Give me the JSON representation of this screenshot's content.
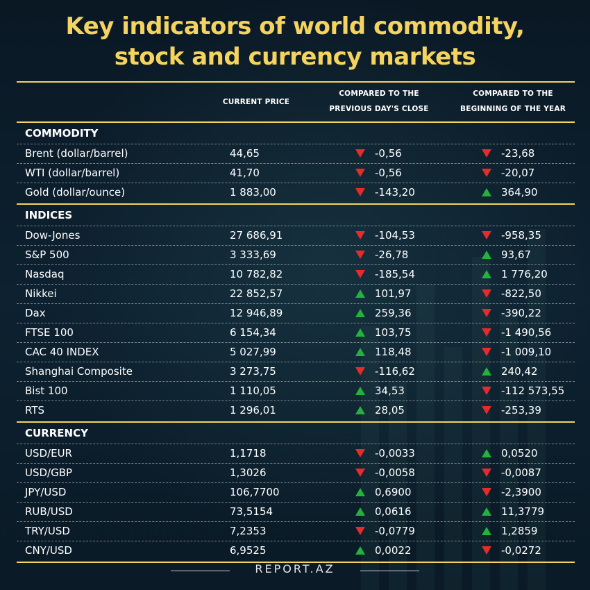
{
  "title": {
    "line1": "Key indicators of world commodity,",
    "line2": "stock and currency markets"
  },
  "columns": {
    "current_price": "CURRENT PRICE",
    "prev_close_line1": "COMPARED TO THE",
    "prev_close_line2": "PREVIOUS DAY'S CLOSE",
    "year_start_line1": "COMPARED TO THE",
    "year_start_line2": "BEGINNING OF THE YEAR"
  },
  "colors": {
    "accent": "#f4d35e",
    "up": "#21b33c",
    "down": "#e52b2b"
  },
  "sections": [
    {
      "title": "COMMODITY",
      "rows": [
        {
          "name": "Brent (dollar/barrel)",
          "price": "44,65",
          "day": "-0,56",
          "day_dir": "down",
          "year": "-23,68",
          "year_dir": "down"
        },
        {
          "name": "WTI (dollar/barrel)",
          "price": "41,70",
          "day": "-0,56",
          "day_dir": "down",
          "year": "-20,07",
          "year_dir": "down"
        },
        {
          "name": "Gold (dollar/ounce)",
          "price": "1 883,00",
          "day": "-143,20",
          "day_dir": "down",
          "year": "364,90",
          "year_dir": "up"
        }
      ]
    },
    {
      "title": "INDICES",
      "rows": [
        {
          "name": "Dow-Jones",
          "price": "27 686,91",
          "day": "-104,53",
          "day_dir": "down",
          "year": "-958,35",
          "year_dir": "down"
        },
        {
          "name": "S&P 500",
          "price": "3 333,69",
          "day": "-26,78",
          "day_dir": "down",
          "year": "93,67",
          "year_dir": "up"
        },
        {
          "name": "Nasdaq",
          "price": "10 782,82",
          "day": "-185,54",
          "day_dir": "down",
          "year": "1 776,20",
          "year_dir": "up"
        },
        {
          "name": "Nikkei",
          "price": "22 852,57",
          "day": "101,97",
          "day_dir": "up",
          "year": "-822,50",
          "year_dir": "down"
        },
        {
          "name": "Dax",
          "price": "12 946,89",
          "day": "259,36",
          "day_dir": "up",
          "year": "-390,22",
          "year_dir": "down"
        },
        {
          "name": "FTSE 100",
          "price": "6 154,34",
          "day": "103,75",
          "day_dir": "up",
          "year": "-1 490,56",
          "year_dir": "down"
        },
        {
          "name": "CAC 40 INDEX",
          "price": "5 027,99",
          "day": "118,48",
          "day_dir": "up",
          "year": "-1 009,10",
          "year_dir": "down"
        },
        {
          "name": "Shanghai Composite",
          "price": "3 273,75",
          "day": "-116,62",
          "day_dir": "down",
          "year": "240,42",
          "year_dir": "up"
        },
        {
          "name": "Bist 100",
          "price": "1 110,05",
          "day": "34,53",
          "day_dir": "up",
          "year": "-112 573,55",
          "year_dir": "down"
        },
        {
          "name": "RTS",
          "price": "1 296,01",
          "day": "28,05",
          "day_dir": "up",
          "year": "-253,39",
          "year_dir": "down"
        }
      ]
    },
    {
      "title": "CURRENCY",
      "rows": [
        {
          "name": "USD/EUR",
          "price": "1,1718",
          "day": "-0,0033",
          "day_dir": "down",
          "year": "0,0520",
          "year_dir": "up"
        },
        {
          "name": "USD/GBP",
          "price": "1,3026",
          "day": "-0,0058",
          "day_dir": "down",
          "year": "-0,0087",
          "year_dir": "down"
        },
        {
          "name": "JPY/USD",
          "price": "106,7700",
          "day": "0,6900",
          "day_dir": "up",
          "year": "-2,3900",
          "year_dir": "down"
        },
        {
          "name": "RUB/USD",
          "price": "73,5154",
          "day": "0,0616",
          "day_dir": "up",
          "year": "11,3779",
          "year_dir": "up"
        },
        {
          "name": "TRY/USD",
          "price": "7,2353",
          "day": "-0,0779",
          "day_dir": "down",
          "year": "1,2859",
          "year_dir": "up"
        },
        {
          "name": "CNY/USD",
          "price": "6,9525",
          "day": "0,0022",
          "day_dir": "up",
          "year": "-0,0272",
          "year_dir": "down"
        }
      ]
    }
  ],
  "footer": "REPORT.AZ"
}
